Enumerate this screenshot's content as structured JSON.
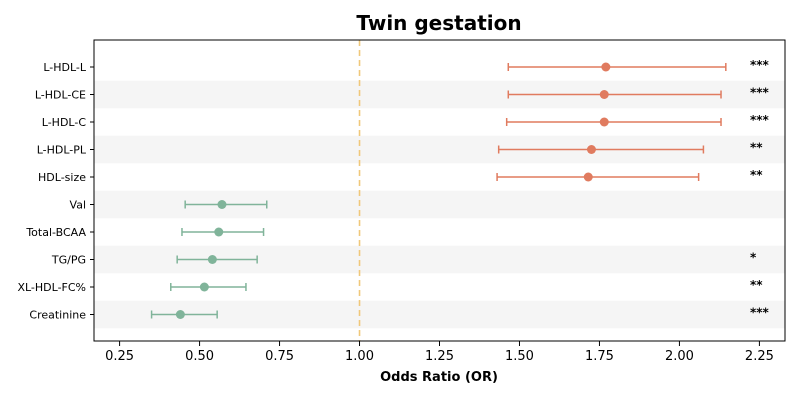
{
  "chart_data": {
    "type": "forest",
    "title": "Twin gestation",
    "xlabel": "Odds Ratio (OR)",
    "xlim": [
      0.17,
      2.33
    ],
    "xticks": [
      0.25,
      0.5,
      0.75,
      1.0,
      1.25,
      1.5,
      1.75,
      2.0,
      2.25
    ],
    "xtick_labels": [
      "0.25",
      "0.50",
      "0.75",
      "1.00",
      "1.25",
      "1.50",
      "1.75",
      "2.00",
      "2.25"
    ],
    "reference_line": 1.0,
    "colors": {
      "positive": "#e07b5f",
      "negative": "#80b49a",
      "reference": "#f0c87a",
      "band": "#f5f5f5"
    },
    "rows": [
      {
        "label": "L-HDL-L",
        "or": 1.77,
        "low": 1.465,
        "high": 2.145,
        "sig": "***",
        "direction": "positive"
      },
      {
        "label": "L-HDL-CE",
        "or": 1.765,
        "low": 1.465,
        "high": 2.13,
        "sig": "***",
        "direction": "positive"
      },
      {
        "label": "L-HDL-C",
        "or": 1.765,
        "low": 1.46,
        "high": 2.13,
        "sig": "***",
        "direction": "positive"
      },
      {
        "label": "L-HDL-PL",
        "or": 1.725,
        "low": 1.435,
        "high": 2.075,
        "sig": "**",
        "direction": "positive"
      },
      {
        "label": "HDL-size",
        "or": 1.715,
        "low": 1.43,
        "high": 2.06,
        "sig": "**",
        "direction": "positive"
      },
      {
        "label": "Val",
        "or": 0.57,
        "low": 0.455,
        "high": 0.71,
        "sig": "",
        "direction": "negative"
      },
      {
        "label": "Total-BCAA",
        "or": 0.56,
        "low": 0.445,
        "high": 0.7,
        "sig": "",
        "direction": "negative"
      },
      {
        "label": "TG/PG",
        "or": 0.54,
        "low": 0.43,
        "high": 0.68,
        "sig": "*",
        "direction": "negative"
      },
      {
        "label": "XL-HDL-FC%",
        "or": 0.515,
        "low": 0.41,
        "high": 0.645,
        "sig": "**",
        "direction": "negative"
      },
      {
        "label": "Creatinine",
        "or": 0.44,
        "low": 0.35,
        "high": 0.555,
        "sig": "***",
        "direction": "negative"
      }
    ]
  }
}
